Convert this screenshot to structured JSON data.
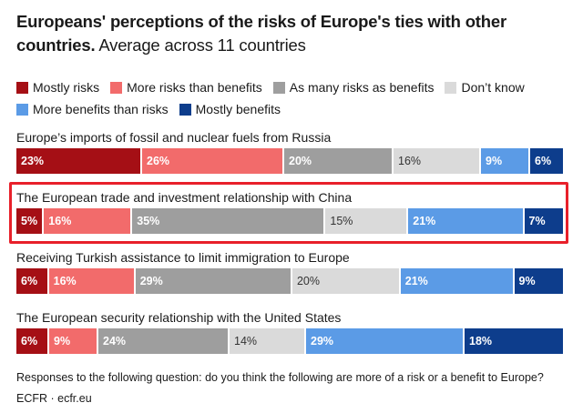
{
  "title": {
    "bold": "Europeans' perceptions of the risks of Europe's ties with other countries.",
    "subtitle": "Average across 11 countries"
  },
  "legend": [
    {
      "label": "Mostly risks",
      "color": "#a50f15"
    },
    {
      "label": "More risks than benefits",
      "color": "#f26b6b"
    },
    {
      "label": "As many risks as benefits",
      "color": "#9e9e9e"
    },
    {
      "label": "Don’t know",
      "color": "#dadada"
    },
    {
      "label": "More benefits than risks",
      "color": "#5b9be6"
    },
    {
      "label": "Mostly benefits",
      "color": "#0d3d8c"
    }
  ],
  "chart_data": {
    "type": "bar",
    "stacked": true,
    "orientation": "horizontal",
    "title": "Europeans' perceptions of the risks of Europe's ties with other countries. Average across 11 countries",
    "categories": [
      "Europe’s imports of fossil and nuclear fuels from Russia",
      "The European trade and investment relationship with China",
      "Receiving Turkish assistance to limit immigration to Europe",
      "The European security relationship with the United States"
    ],
    "series": [
      {
        "name": "Mostly risks",
        "values": [
          23,
          5,
          6,
          6
        ]
      },
      {
        "name": "More risks than benefits",
        "values": [
          26,
          16,
          16,
          9
        ]
      },
      {
        "name": "As many risks as benefits",
        "values": [
          20,
          35,
          29,
          24
        ]
      },
      {
        "name": "Don’t know",
        "values": [
          16,
          15,
          20,
          14
        ]
      },
      {
        "name": "More benefits than risks",
        "values": [
          9,
          21,
          21,
          29
        ]
      },
      {
        "name": "Mostly benefits",
        "values": [
          6,
          7,
          9,
          18
        ]
      }
    ],
    "unit": "%",
    "highlighted_category": "The European trade and investment relationship with China"
  },
  "footnote": "Responses to the following question: do you think the following are more of a risk or a benefit to Europe?",
  "source": "ECFR · ecfr.eu"
}
